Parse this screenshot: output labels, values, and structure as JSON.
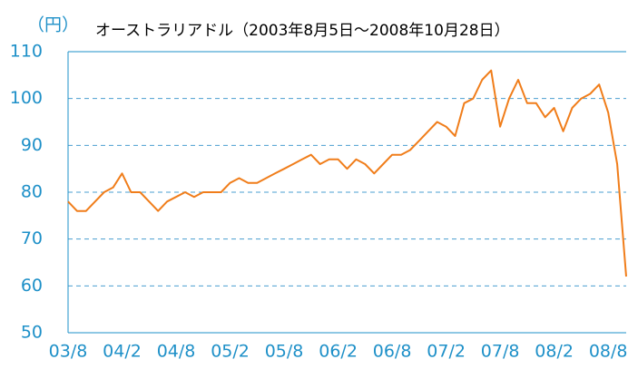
{
  "chart_data": {
    "type": "line",
    "title": "オーストラリアドル（2003年8月5日～2008年10月28日）",
    "y_label": "（円）",
    "categories": [
      "03/8",
      null,
      null,
      null,
      null,
      null,
      "04/2",
      null,
      null,
      null,
      null,
      null,
      "04/8",
      null,
      null,
      null,
      null,
      null,
      "05/2",
      null,
      null,
      null,
      null,
      null,
      "05/8",
      null,
      null,
      null,
      null,
      null,
      "06/2",
      null,
      null,
      null,
      null,
      null,
      "06/8",
      null,
      null,
      null,
      null,
      null,
      "07/2",
      null,
      null,
      null,
      null,
      null,
      "07/8",
      null,
      null,
      null,
      null,
      null,
      "08/2",
      null,
      null,
      null,
      null,
      null,
      "08/8",
      null,
      null
    ],
    "series": [
      {
        "name": "オーストラリアドル",
        "color": "#f07d1a",
        "values": [
          78,
          76,
          76,
          78,
          80,
          81,
          84,
          80,
          80,
          78,
          76,
          78,
          79,
          80,
          79,
          80,
          80,
          80,
          82,
          83,
          82,
          82,
          83,
          84,
          85,
          86,
          87,
          88,
          86,
          87,
          87,
          85,
          87,
          86,
          84,
          86,
          88,
          88,
          89,
          91,
          93,
          95,
          94,
          92,
          99,
          100,
          104,
          106,
          94,
          100,
          104,
          99,
          99,
          96,
          98,
          93,
          98,
          100,
          101,
          103,
          97,
          86,
          62
        ]
      }
    ],
    "ylim": [
      50,
      110
    ],
    "yticks": [
      50,
      60,
      70,
      80,
      90,
      100,
      110
    ],
    "grid": true
  }
}
